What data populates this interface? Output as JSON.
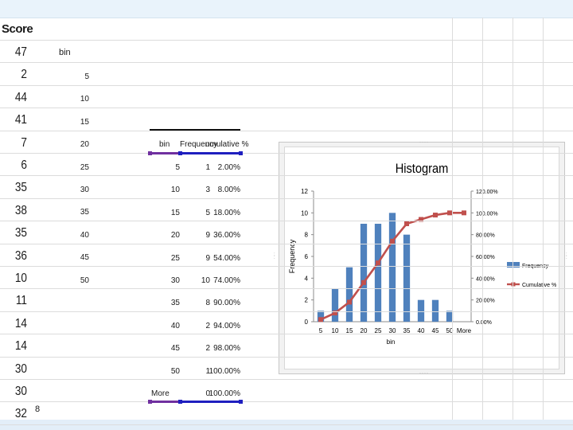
{
  "score_column": {
    "header": "Score",
    "values": [
      "47",
      "2",
      "44",
      "41",
      "7",
      "6",
      "35",
      "38",
      "35",
      "36",
      "10",
      "11",
      "14",
      "14",
      "30",
      "30",
      "32"
    ]
  },
  "bin_column": {
    "header": "bin",
    "values": [
      "5",
      "10",
      "15",
      "20",
      "25",
      "30",
      "35",
      "40",
      "45",
      "50"
    ]
  },
  "frequency_table": {
    "headers": [
      "bin",
      "Frequency",
      "Cumulative %"
    ],
    "header_text": [
      "bin",
      "Frequency",
      "umulative %"
    ],
    "rows": [
      {
        "bin": "5",
        "freq": "1",
        "cum": "2.00%"
      },
      {
        "bin": "10",
        "freq": "3",
        "cum": "8.00%"
      },
      {
        "bin": "15",
        "freq": "5",
        "cum": "18.00%"
      },
      {
        "bin": "20",
        "freq": "9",
        "cum": "36.00%"
      },
      {
        "bin": "25",
        "freq": "9",
        "cum": "54.00%"
      },
      {
        "bin": "30",
        "freq": "10",
        "cum": "74.00%"
      },
      {
        "bin": "35",
        "freq": "8",
        "cum": "90.00%"
      },
      {
        "bin": "40",
        "freq": "2",
        "cum": "94.00%"
      },
      {
        "bin": "45",
        "freq": "2",
        "cum": "98.00%"
      },
      {
        "bin": "50",
        "freq": "1",
        "cum": "100.00%"
      },
      {
        "bin": "More",
        "freq": "0",
        "cum": "100.00%"
      }
    ]
  },
  "page_number": "8",
  "colors": {
    "bar": "#4f81bd",
    "line": "#c0504d",
    "selection_purple": "#7030a0",
    "selection_blue": "#1f1fbf"
  },
  "chart_data": {
    "type": "bar",
    "title": "Histogram",
    "xlabel": "bin",
    "ylabel": "Frequency",
    "categories": [
      "5",
      "10",
      "15",
      "20",
      "25",
      "30",
      "35",
      "40",
      "45",
      "50",
      "More"
    ],
    "series": [
      {
        "name": "Frequency",
        "type": "bar",
        "axis": "left",
        "values": [
          1,
          3,
          5,
          9,
          9,
          10,
          8,
          2,
          2,
          1,
          0
        ]
      },
      {
        "name": "Cumulative %",
        "type": "line",
        "axis": "right",
        "values": [
          2,
          8,
          18,
          36,
          54,
          74,
          90,
          94,
          98,
          100,
          100
        ]
      }
    ],
    "ylim": [
      0,
      12
    ],
    "y_ticks": [
      "0",
      "2",
      "4",
      "6",
      "8",
      "10",
      "12"
    ],
    "y2lim": [
      0,
      120
    ],
    "y2_ticks": [
      "0.00%",
      "20.00%",
      "40.00%",
      "60.00%",
      "80.00%",
      "100.00%",
      "120.00%"
    ],
    "legend": [
      "Frequency",
      "Cumulative %"
    ],
    "legend_position": "right",
    "grid": false
  }
}
